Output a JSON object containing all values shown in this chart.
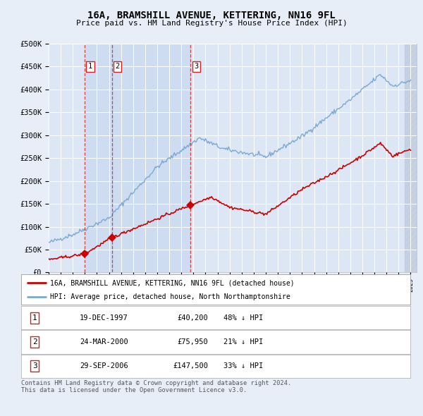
{
  "title": "16A, BRAMSHILL AVENUE, KETTERING, NN16 9FL",
  "subtitle": "Price paid vs. HM Land Registry's House Price Index (HPI)",
  "legend_label_red": "16A, BRAMSHILL AVENUE, KETTERING, NN16 9FL (detached house)",
  "legend_label_blue": "HPI: Average price, detached house, North Northamptonshire",
  "footer": "Contains HM Land Registry data © Crown copyright and database right 2024.\nThis data is licensed under the Open Government Licence v3.0.",
  "transactions": [
    {
      "num": 1,
      "date": "19-DEC-1997",
      "price": 40200,
      "pct": "48%",
      "dir": "↓",
      "x_year": 1997.97
    },
    {
      "num": 2,
      "date": "24-MAR-2000",
      "price": 75950,
      "pct": "21%",
      "dir": "↓",
      "x_year": 2000.23
    },
    {
      "num": 3,
      "date": "29-SEP-2006",
      "price": 147500,
      "pct": "33%",
      "dir": "↓",
      "x_year": 2006.75
    }
  ],
  "ylim": [
    0,
    500000
  ],
  "yticks": [
    0,
    50000,
    100000,
    150000,
    200000,
    250000,
    300000,
    350000,
    400000,
    450000,
    500000
  ],
  "xmin": 1995.0,
  "xmax": 2025.5,
  "background_color": "#e8eef8",
  "plot_bg": "#dce6f5",
  "grid_color": "#ffffff",
  "red_color": "#cc0000",
  "blue_color": "#7aaad0",
  "vline_color": "#cc3333",
  "box_edge_color": "#cc2222",
  "shade_color": "#c8d8f0",
  "hatch_color": "#c0cce0"
}
